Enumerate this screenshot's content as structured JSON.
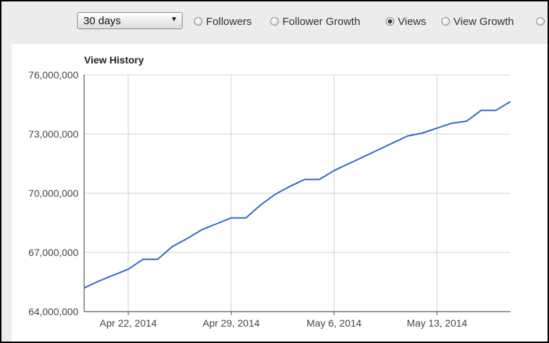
{
  "controls": {
    "range_select": {
      "value": "30 days"
    },
    "radios": [
      {
        "label": "Followers",
        "checked": false
      },
      {
        "label": "Follower Growth",
        "checked": false
      },
      {
        "label": "Views",
        "checked": true
      },
      {
        "label": "View Growth",
        "checked": false
      },
      {
        "label": "",
        "checked": false
      }
    ]
  },
  "chart_data": {
    "type": "line",
    "title": "View History",
    "xlabel": "",
    "ylabel": "",
    "ylim": [
      64000000,
      76000000
    ],
    "y_ticks": [
      64000000,
      67000000,
      70000000,
      73000000,
      76000000
    ],
    "y_tick_labels": [
      "64,000,000",
      "67,000,000",
      "70,000,000",
      "73,000,000",
      "76,000,000"
    ],
    "x_ticks": [
      "2014-04-22",
      "2014-04-29",
      "2014-05-06",
      "2014-05-13"
    ],
    "x_tick_labels": [
      "Apr 22, 2014",
      "Apr 29, 2014",
      "May 6, 2014",
      "May 13, 2014"
    ],
    "xlim": [
      "2014-04-19",
      "2014-05-18"
    ],
    "grid": true,
    "color": "#3366cc",
    "series": [
      {
        "x": [
          "2014-04-19",
          "2014-04-20",
          "2014-04-21",
          "2014-04-22",
          "2014-04-23",
          "2014-04-24",
          "2014-04-25",
          "2014-04-26",
          "2014-04-27",
          "2014-04-28",
          "2014-04-29",
          "2014-04-30",
          "2014-05-01",
          "2014-05-02",
          "2014-05-03",
          "2014-05-04",
          "2014-05-05",
          "2014-05-06",
          "2014-05-07",
          "2014-05-08",
          "2014-05-09",
          "2014-05-10",
          "2014-05-11",
          "2014-05-12",
          "2014-05-13",
          "2014-05-14",
          "2014-05-15",
          "2014-05-16",
          "2014-05-17",
          "2014-05-18"
        ],
        "values": [
          65200000,
          65550000,
          65850000,
          66150000,
          66650000,
          66650000,
          67300000,
          67700000,
          68150000,
          68450000,
          68750000,
          68750000,
          69400000,
          69950000,
          70350000,
          70700000,
          70700000,
          71150000,
          71500000,
          71850000,
          72200000,
          72550000,
          72900000,
          73050000,
          73300000,
          73550000,
          73650000,
          74200000,
          74200000,
          74650000
        ]
      }
    ]
  }
}
